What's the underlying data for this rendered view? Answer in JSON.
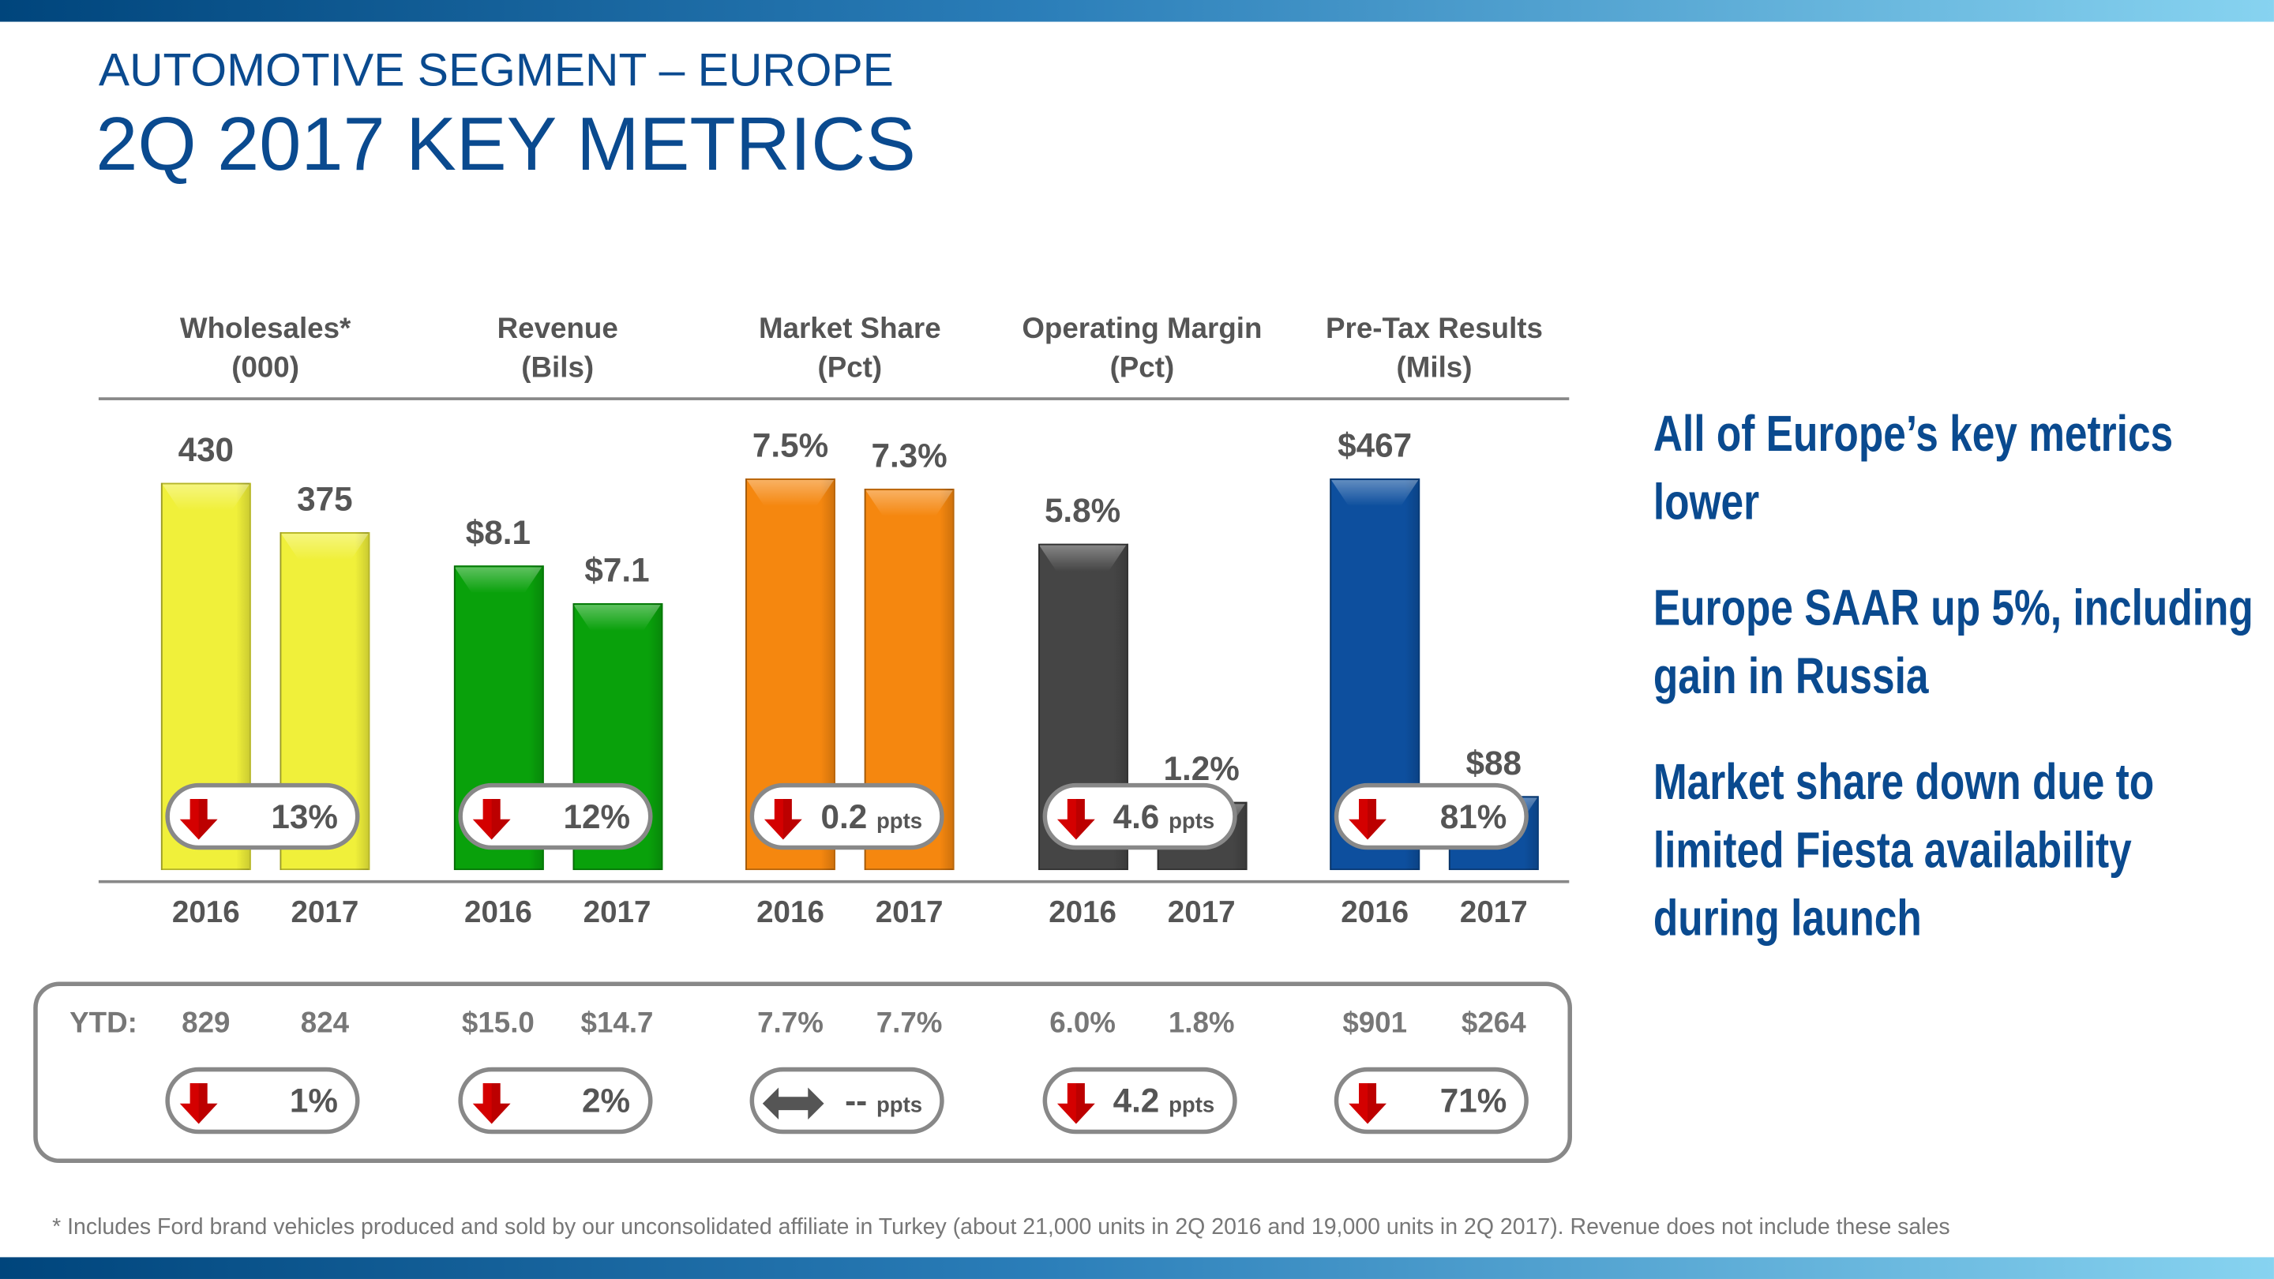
{
  "header": {
    "subtitle": "AUTOMOTIVE SEGMENT – EUROPE",
    "title": "2Q 2017 KEY METRICS"
  },
  "colors": {
    "brand_blue": "#0a4a8f",
    "down_arrow": "#d40000",
    "neutral_arrow": "#555555"
  },
  "chart_data": {
    "type": "bar",
    "categories": [
      "2016",
      "2017"
    ],
    "series": [
      {
        "name": "Wholesales* (000)",
        "title": "Wholesales*",
        "unit": "(000)",
        "values": [
          430,
          375
        ],
        "labels": [
          "430",
          "375"
        ],
        "color": "#f0f03a",
        "change": {
          "direction": "down",
          "value": "13%",
          "unit": ""
        },
        "ytd": {
          "values": [
            "829",
            "824"
          ],
          "change": {
            "direction": "down",
            "value": "1%",
            "unit": ""
          }
        }
      },
      {
        "name": "Revenue (Bils)",
        "title": "Revenue",
        "unit": "(Bils)",
        "values": [
          8.1,
          7.1
        ],
        "labels": [
          "$8.1",
          "$7.1"
        ],
        "color": "#09a10b",
        "change": {
          "direction": "down",
          "value": "12%",
          "unit": ""
        },
        "ytd": {
          "values": [
            "$15.0",
            "$14.7"
          ],
          "change": {
            "direction": "down",
            "value": "2%",
            "unit": ""
          }
        }
      },
      {
        "name": "Market Share (Pct)",
        "title": "Market Share",
        "unit": "(Pct)",
        "values": [
          7.5,
          7.3
        ],
        "labels": [
          "7.5%",
          "7.3%"
        ],
        "color": "#f5870f",
        "change": {
          "direction": "down",
          "value": "0.2",
          "unit": "ppts"
        },
        "ytd": {
          "values": [
            "7.7%",
            "7.7%"
          ],
          "change": {
            "direction": "flat",
            "value": "--",
            "unit": "ppts"
          }
        }
      },
      {
        "name": "Operating Margin (Pct)",
        "title": "Operating Margin",
        "unit": "(Pct)",
        "values": [
          5.8,
          1.2
        ],
        "labels": [
          "5.8%",
          "1.2%"
        ],
        "color": "#454545",
        "change": {
          "direction": "down",
          "value": "4.6",
          "unit": "ppts"
        },
        "ytd": {
          "values": [
            "6.0%",
            "1.8%"
          ],
          "change": {
            "direction": "down",
            "value": "4.2",
            "unit": "ppts"
          }
        }
      },
      {
        "name": "Pre-Tax Results (Mils)",
        "title": "Pre-Tax Results",
        "unit": "(Mils)",
        "values": [
          467,
          88
        ],
        "labels": [
          "$467",
          "$88"
        ],
        "color": "#0d4f9e",
        "change": {
          "direction": "down",
          "value": "81%",
          "unit": ""
        },
        "ytd": {
          "values": [
            "$901",
            "$264"
          ],
          "change": {
            "direction": "down",
            "value": "71%",
            "unit": ""
          }
        }
      }
    ],
    "ytd_label": "YTD:"
  },
  "side": {
    "points": [
      "All of Europe’s key metrics lower",
      "Europe SAAR up 5%, including gain in Russia",
      "Market share down due to limited Fiesta availability during launch"
    ]
  },
  "footnote": "*  Includes Ford brand vehicles produced and sold by our unconsolidated affiliate in Turkey (about 21,000 units in 2Q 2016 and 19,000 units in 2Q 2017).  Revenue does not include these sales"
}
